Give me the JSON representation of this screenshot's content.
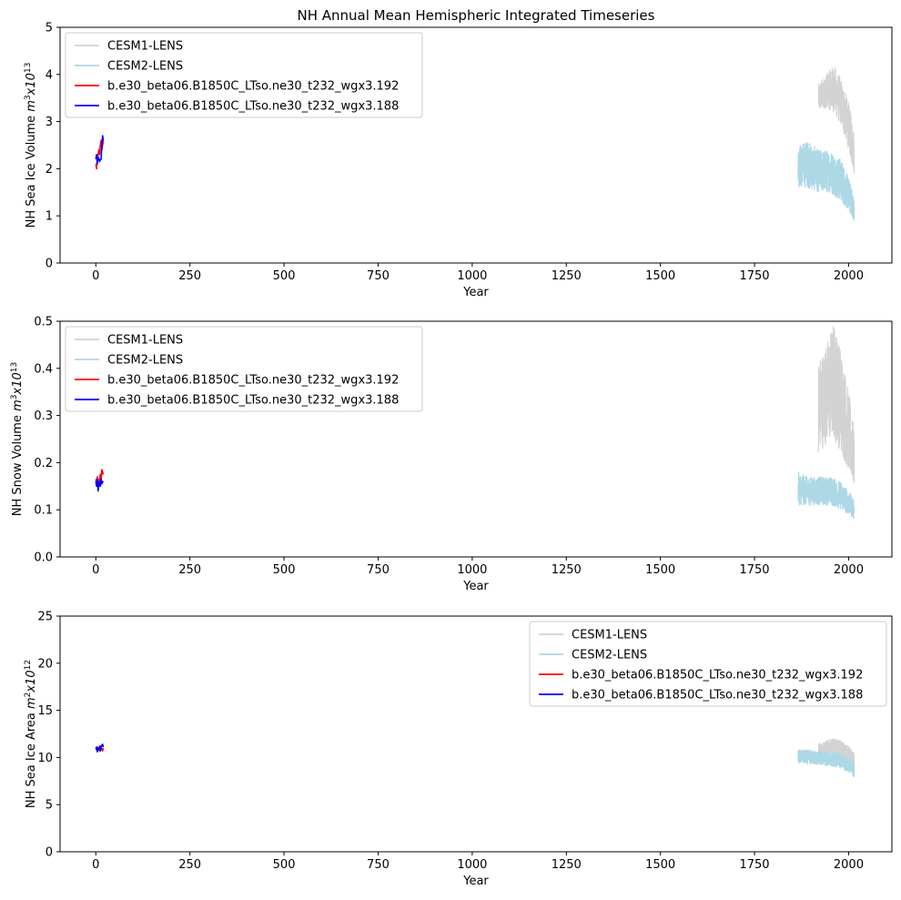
{
  "figure_title": "NH Annual Mean Hemispheric Integrated Timeseries",
  "legend": [
    {
      "name": "CESM1-LENS",
      "color": "#d3d3d3"
    },
    {
      "name": "CESM2-LENS",
      "color": "#add8e6"
    },
    {
      "name": "b.e30_beta06.B1850C_LTso.ne30_t232_wgx3.192",
      "color": "#ff0000"
    },
    {
      "name": "b.e30_beta06.B1850C_LTso.ne30_t232_wgx3.188",
      "color": "#0000ff"
    }
  ],
  "chart_data": [
    {
      "type": "line",
      "title": "NH Annual Mean Hemispheric Integrated Timeseries",
      "xlabel": "Year",
      "ylabel": "NH Sea Ice Volume m³x10¹³",
      "ylabel_main": "NH Sea Ice Volume ",
      "ylabel_unit": "m",
      "ylabel_unit_sup": "3",
      "ylabel_mid": "x10",
      "ylabel_exp_sup": "13",
      "xlim": [
        -95,
        2115
      ],
      "ylim": [
        0,
        5
      ],
      "xticks": [
        "0",
        "250",
        "500",
        "750",
        "1000",
        "1250",
        "1500",
        "1750",
        "2000"
      ],
      "xtick_values": [
        0,
        250,
        500,
        750,
        1000,
        1250,
        1500,
        1750,
        2000
      ],
      "yticks": [
        "0",
        "1",
        "2",
        "3",
        "4",
        "5"
      ],
      "ytick_values": [
        0,
        1,
        2,
        3,
        4,
        5
      ],
      "legend_loc": "upper-left",
      "series": [
        {
          "name": "CESM1-LENS",
          "x_start": 1920,
          "x_end": 2014,
          "band": [
            [
              1920,
              3.2,
              3.8
            ],
            [
              1940,
              3.3,
              4.0
            ],
            [
              1960,
              3.2,
              4.2
            ],
            [
              1980,
              2.9,
              3.9
            ],
            [
              2000,
              2.4,
              3.4
            ],
            [
              2014,
              1.9,
              2.8
            ]
          ]
        },
        {
          "name": "CESM2-LENS",
          "x_start": 1866,
          "x_end": 2014,
          "band": [
            [
              1866,
              1.6,
              2.5
            ],
            [
              1890,
              1.6,
              2.6
            ],
            [
              1920,
              1.5,
              2.4
            ],
            [
              1950,
              1.5,
              2.4
            ],
            [
              1980,
              1.3,
              2.2
            ],
            [
              2000,
              1.1,
              1.8
            ],
            [
              2014,
              0.9,
              1.4
            ]
          ]
        },
        {
          "name": "b.e30_beta06.B1850C_LTso.ne30_t232_wgx3.192",
          "x": [
            0,
            2,
            4,
            6,
            8,
            10,
            12,
            14,
            16,
            18,
            20
          ],
          "y": [
            2.1,
            2.0,
            2.25,
            2.3,
            2.4,
            2.3,
            2.5,
            2.6,
            2.4,
            2.5,
            2.6
          ]
        },
        {
          "name": "b.e30_beta06.B1850C_LTso.ne30_t232_wgx3.188",
          "x": [
            0,
            2,
            4,
            6,
            8,
            10,
            12,
            14,
            16,
            18,
            20
          ],
          "y": [
            2.2,
            2.3,
            2.1,
            2.25,
            2.2,
            2.15,
            2.2,
            2.2,
            2.5,
            2.7,
            2.6
          ]
        }
      ]
    },
    {
      "type": "line",
      "title": "",
      "xlabel": "Year",
      "ylabel": "NH Snow Volume m³x10¹³",
      "ylabel_main": "NH Snow Volume ",
      "ylabel_unit": "m",
      "ylabel_unit_sup": "3",
      "ylabel_mid": "x10",
      "ylabel_exp_sup": "13",
      "xlim": [
        -95,
        2115
      ],
      "ylim": [
        0,
        0.5
      ],
      "xticks": [
        "0",
        "250",
        "500",
        "750",
        "1000",
        "1250",
        "1500",
        "1750",
        "2000"
      ],
      "xtick_values": [
        0,
        250,
        500,
        750,
        1000,
        1250,
        1500,
        1750,
        2000
      ],
      "yticks": [
        "0.0",
        "0.1",
        "0.2",
        "0.3",
        "0.4",
        "0.5"
      ],
      "ytick_values": [
        0,
        0.1,
        0.2,
        0.3,
        0.4,
        0.5
      ],
      "legend_loc": "upper-left",
      "series": [
        {
          "name": "CESM1-LENS",
          "x_start": 1920,
          "x_end": 2014,
          "band": [
            [
              1920,
              0.22,
              0.42
            ],
            [
              1940,
              0.24,
              0.45
            ],
            [
              1960,
              0.25,
              0.5
            ],
            [
              1980,
              0.22,
              0.44
            ],
            [
              2000,
              0.18,
              0.35
            ],
            [
              2014,
              0.15,
              0.27
            ]
          ]
        },
        {
          "name": "CESM2-LENS",
          "x_start": 1866,
          "x_end": 2014,
          "band": [
            [
              1866,
              0.11,
              0.18
            ],
            [
              1890,
              0.11,
              0.17
            ],
            [
              1920,
              0.11,
              0.17
            ],
            [
              1950,
              0.11,
              0.17
            ],
            [
              1980,
              0.1,
              0.16
            ],
            [
              2000,
              0.09,
              0.14
            ],
            [
              2014,
              0.08,
              0.12
            ]
          ]
        },
        {
          "name": "b.e30_beta06.B1850C_LTso.ne30_t232_wgx3.192",
          "x": [
            0,
            2,
            4,
            6,
            8,
            10,
            12,
            14,
            16,
            18,
            20
          ],
          "y": [
            0.165,
            0.155,
            0.17,
            0.16,
            0.15,
            0.165,
            0.175,
            0.16,
            0.185,
            0.18,
            0.175
          ]
        },
        {
          "name": "b.e30_beta06.B1850C_LTso.ne30_t232_wgx3.188",
          "x": [
            0,
            2,
            4,
            6,
            8,
            10,
            12,
            14,
            16,
            18,
            20
          ],
          "y": [
            0.16,
            0.15,
            0.165,
            0.14,
            0.155,
            0.16,
            0.15,
            0.165,
            0.155,
            0.16,
            0.158
          ]
        }
      ]
    },
    {
      "type": "line",
      "title": "",
      "xlabel": "Year",
      "ylabel": "NH Sea Ice Area m²x10¹²",
      "ylabel_main": "NH Sea Ice Area ",
      "ylabel_unit": "m",
      "ylabel_unit_sup": "2",
      "ylabel_mid": "x10",
      "ylabel_exp_sup": "12",
      "xlim": [
        -95,
        2115
      ],
      "ylim": [
        0,
        25
      ],
      "xticks": [
        "0",
        "250",
        "500",
        "750",
        "1000",
        "1250",
        "1500",
        "1750",
        "2000"
      ],
      "xtick_values": [
        0,
        250,
        500,
        750,
        1000,
        1250,
        1500,
        1750,
        2000
      ],
      "yticks": [
        "0",
        "5",
        "10",
        "15",
        "20",
        "25"
      ],
      "ytick_values": [
        0,
        5,
        10,
        15,
        20,
        25
      ],
      "legend_loc": "upper-right",
      "series": [
        {
          "name": "CESM1-LENS",
          "x_start": 1920,
          "x_end": 2014,
          "band": [
            [
              1920,
              10.2,
              11.5
            ],
            [
              1940,
              10.3,
              11.8
            ],
            [
              1960,
              10.4,
              12.0
            ],
            [
              1980,
              10.0,
              11.8
            ],
            [
              2000,
              9.2,
              11.2
            ],
            [
              2014,
              8.2,
              10.5
            ]
          ]
        },
        {
          "name": "CESM2-LENS",
          "x_start": 1866,
          "x_end": 2014,
          "band": [
            [
              1866,
              9.4,
              10.8
            ],
            [
              1890,
              9.3,
              10.8
            ],
            [
              1920,
              9.2,
              10.7
            ],
            [
              1950,
              9.1,
              10.6
            ],
            [
              1980,
              8.8,
              10.4
            ],
            [
              2000,
              8.5,
              10.0
            ],
            [
              2014,
              7.8,
              9.4
            ]
          ]
        },
        {
          "name": "b.e30_beta06.B1850C_LTso.ne30_t232_wgx3.192",
          "x": [
            0,
            2,
            4,
            6,
            8,
            10,
            12,
            14,
            16,
            18,
            20
          ],
          "y": [
            11.0,
            10.8,
            11.1,
            10.9,
            11.0,
            10.7,
            11.2,
            11.0,
            10.9,
            10.7,
            11.0
          ]
        },
        {
          "name": "b.e30_beta06.B1850C_LTso.ne30_t232_wgx3.188",
          "x": [
            0,
            2,
            4,
            6,
            8,
            10,
            12,
            14,
            16,
            18,
            20
          ],
          "y": [
            10.9,
            11.1,
            10.6,
            11.0,
            10.8,
            11.2,
            10.7,
            11.0,
            11.3,
            11.4,
            11.1
          ]
        }
      ]
    }
  ]
}
